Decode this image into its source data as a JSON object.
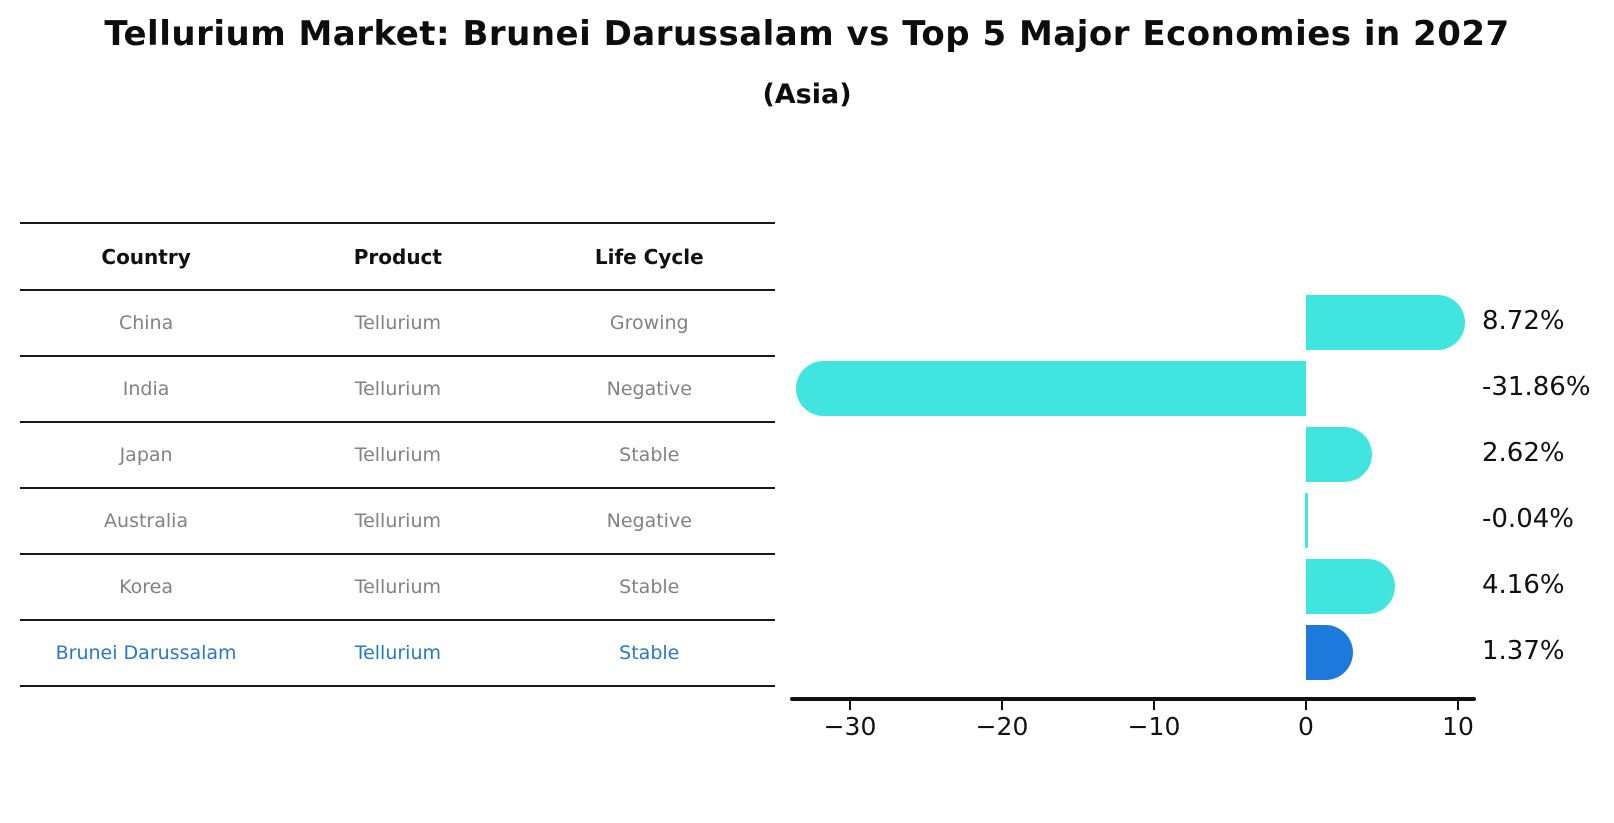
{
  "header": {
    "title": "Tellurium Market: Brunei Darussalam vs Top 5 Major Economies in 2027",
    "subtitle": "(Asia)"
  },
  "table": {
    "columns": [
      "Country",
      "Product",
      "Life Cycle"
    ],
    "rows": [
      {
        "country": "China",
        "product": "Tellurium",
        "life_cycle": "Growing",
        "highlight": false
      },
      {
        "country": "India",
        "product": "Tellurium",
        "life_cycle": "Negative",
        "highlight": false
      },
      {
        "country": "Japan",
        "product": "Tellurium",
        "life_cycle": "Stable",
        "highlight": false
      },
      {
        "country": "Australia",
        "product": "Tellurium",
        "life_cycle": "Negative",
        "highlight": false
      },
      {
        "country": "Korea",
        "product": "Tellurium",
        "life_cycle": "Stable",
        "highlight": false
      },
      {
        "country": "Brunei Darussalam",
        "product": "Tellurium",
        "life_cycle": "Stable",
        "highlight": true
      }
    ]
  },
  "chart_data": {
    "type": "bar",
    "orientation": "horizontal",
    "title": "Tellurium Market: Brunei Darussalam vs Top 5 Major Economies in 2027",
    "subtitle": "(Asia)",
    "categories": [
      "China",
      "India",
      "Japan",
      "Australia",
      "Korea",
      "Brunei Darussalam"
    ],
    "values": [
      8.72,
      -31.86,
      2.62,
      -0.04,
      4.16,
      1.37
    ],
    "value_labels": [
      "8.72%",
      "-31.86%",
      "2.62%",
      "-0.04%",
      "4.16%",
      "1.37%"
    ],
    "xlabel": "",
    "ylabel": "",
    "xlim": [
      -34,
      11.2
    ],
    "x_ticks": [
      -30,
      -20,
      -10,
      0,
      10
    ],
    "x_tick_labels": [
      "−30",
      "−20",
      "−10",
      "0",
      "10"
    ],
    "grid": false,
    "legend": false,
    "bar_color": "#40e5e0",
    "highlight_color": "#1e79dd",
    "highlight_index": 5,
    "highlight_text_color": "#2878c8"
  }
}
